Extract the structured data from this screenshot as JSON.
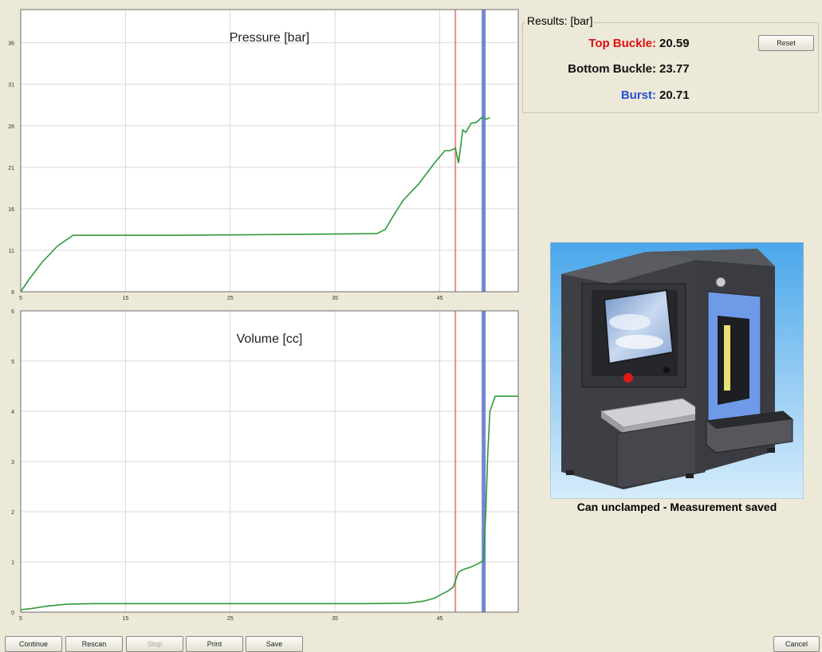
{
  "results": {
    "title": "Results: [bar]",
    "reset_label": "Reset",
    "rows": [
      {
        "label": "Top Buckle:",
        "value": "20.59",
        "color": "#e01010"
      },
      {
        "label": "Bottom Buckle:",
        "value": "23.77",
        "color": "#111111"
      },
      {
        "label": "Burst:",
        "value": "20.71",
        "color": "#2a4fd6"
      }
    ]
  },
  "status": {
    "message": "Can unclamped - Measurement saved"
  },
  "buttons": {
    "continue": "Continue",
    "rescan": "Rescan",
    "stop": "Stop",
    "print": "Print",
    "save": "Save",
    "cancel": "Cancel"
  },
  "colors": {
    "curve": "#2e9a3a",
    "top_buckle_marker": "#e57a7a",
    "burst_marker": "#5b74c9",
    "background": "#ece9d8"
  },
  "chart_data": [
    {
      "type": "line",
      "title": "Pressure [bar]",
      "xlabel": "",
      "ylabel": "",
      "xlim": [
        5,
        52.5
      ],
      "ylim": [
        6,
        40
      ],
      "x_ticks": [
        5,
        15,
        25,
        35,
        45
      ],
      "y_ticks": [
        6,
        11,
        16,
        21,
        26,
        31,
        36
      ],
      "grid": true,
      "series": [
        {
          "x": [
            5,
            5.8,
            7,
            8.5,
            10,
            12,
            20,
            30,
            39,
            39.8,
            40.5,
            41.5,
            43,
            44.5,
            45.5,
            46,
            46.5,
            46.8,
            47.2,
            47.5,
            48,
            48.5,
            49,
            49.5,
            49.8
          ],
          "y": [
            6,
            7.5,
            9.5,
            11.5,
            12.8,
            12.8,
            12.8,
            12.9,
            13.0,
            13.5,
            15,
            17,
            19,
            21.5,
            23,
            23,
            23.3,
            21.5,
            25.5,
            25.2,
            26.3,
            26.4,
            27,
            26.8,
            27
          ]
        }
      ],
      "markers": [
        {
          "name": "Top Buckle",
          "x": 46.5,
          "color": "#e57a7a"
        },
        {
          "name": "Burst",
          "x": 49.2,
          "color": "#5b74c9"
        }
      ]
    },
    {
      "type": "line",
      "title": "Volume [cc]",
      "xlabel": "",
      "ylabel": "",
      "xlim": [
        5,
        52.5
      ],
      "ylim": [
        0,
        6
      ],
      "x_ticks": [
        5,
        15,
        25,
        35,
        45
      ],
      "y_ticks": [
        0,
        1,
        2,
        3,
        4,
        5,
        6
      ],
      "grid": true,
      "series": [
        {
          "x": [
            5,
            6,
            7.5,
            9.5,
            12,
            20,
            30,
            38,
            42,
            43.5,
            44.5,
            45.2,
            45.8,
            46.3,
            46.8,
            47.3,
            48,
            48.8,
            49.2,
            49.4,
            49.6,
            49.8,
            50.3,
            52.5
          ],
          "y": [
            0.05,
            0.07,
            0.12,
            0.16,
            0.17,
            0.17,
            0.17,
            0.17,
            0.18,
            0.22,
            0.28,
            0.36,
            0.42,
            0.5,
            0.8,
            0.85,
            0.9,
            0.98,
            1.03,
            2.0,
            3.2,
            4.0,
            4.3,
            4.3
          ]
        }
      ],
      "markers": [
        {
          "name": "Top Buckle",
          "x": 46.5,
          "color": "#e57a7a"
        },
        {
          "name": "Burst",
          "x": 49.2,
          "color": "#5b74c9"
        }
      ]
    }
  ]
}
